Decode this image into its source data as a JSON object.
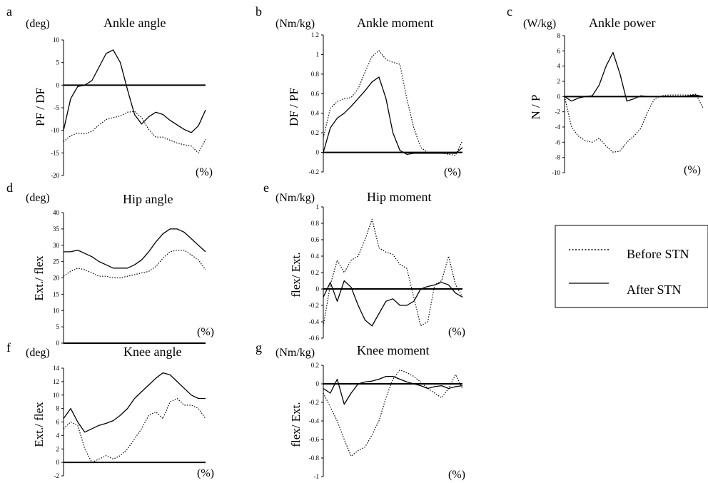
{
  "legend": {
    "items": [
      {
        "label": "Before STN",
        "style": "dotted"
      },
      {
        "label": "After STN",
        "style": "solid"
      }
    ]
  },
  "chart_data": [
    {
      "type": "line",
      "panel": "a",
      "title": "Ankle angle",
      "unit": "(deg)",
      "ylabel": "PF / DF",
      "xlabel": "(%)",
      "ylim": [
        -20,
        10
      ],
      "yticks": [
        "10",
        "5",
        "0",
        "-5",
        "-10",
        "-15",
        "-20"
      ],
      "series": [
        {
          "name": "Before STN",
          "style": "dotted",
          "x": [
            0,
            5,
            10,
            15,
            20,
            25,
            30,
            35,
            40,
            45,
            50,
            55,
            60,
            65,
            70,
            75,
            80,
            85,
            90,
            95,
            100
          ],
          "y": [
            -12.5,
            -11.2,
            -10.6,
            -10.8,
            -10.2,
            -8.8,
            -7.6,
            -7.2,
            -6.8,
            -6.0,
            -5.8,
            -7.2,
            -9.8,
            -11.5,
            -11.5,
            -12.2,
            -12.8,
            -13.2,
            -13.5,
            -15.0,
            -12.0
          ]
        },
        {
          "name": "After STN",
          "style": "solid",
          "x": [
            0,
            5,
            10,
            15,
            20,
            25,
            30,
            35,
            40,
            45,
            50,
            55,
            60,
            65,
            70,
            75,
            80,
            85,
            90,
            95,
            100
          ],
          "y": [
            -10.0,
            -3.0,
            -0.3,
            0.0,
            1.0,
            4.0,
            7.0,
            7.8,
            5.0,
            -1.0,
            -6.5,
            -8.6,
            -7.0,
            -6.0,
            -6.5,
            -7.8,
            -8.8,
            -9.8,
            -10.5,
            -9.0,
            -5.5
          ]
        }
      ]
    },
    {
      "type": "line",
      "panel": "b",
      "title": "Ankle moment",
      "unit": "(Nm/kg)",
      "ylabel": "DF / PF",
      "xlabel": "(%)",
      "ylim": [
        -0.2,
        1.2
      ],
      "yticks": [
        "1.2",
        "1",
        "0.8",
        "0.6",
        "0.4",
        "0.2",
        "0",
        "-0.2"
      ],
      "series": [
        {
          "name": "Before STN",
          "style": "dotted",
          "x": [
            0,
            5,
            10,
            15,
            20,
            25,
            30,
            35,
            40,
            45,
            50,
            55,
            60,
            65,
            70,
            75,
            80,
            85,
            90,
            95,
            100
          ],
          "y": [
            0.15,
            0.45,
            0.52,
            0.55,
            0.56,
            0.65,
            0.82,
            0.98,
            1.04,
            0.95,
            0.92,
            0.9,
            0.55,
            0.25,
            0.05,
            0.0,
            0.0,
            -0.01,
            -0.02,
            -0.03,
            0.12
          ]
        },
        {
          "name": "After STN",
          "style": "solid",
          "x": [
            0,
            5,
            10,
            15,
            20,
            25,
            30,
            35,
            40,
            45,
            50,
            55,
            60,
            65,
            70,
            75,
            80,
            85,
            90,
            95,
            100
          ],
          "y": [
            0.0,
            0.25,
            0.35,
            0.4,
            0.47,
            0.55,
            0.63,
            0.72,
            0.77,
            0.55,
            0.2,
            0.02,
            -0.02,
            -0.01,
            -0.01,
            -0.01,
            -0.01,
            -0.01,
            -0.01,
            -0.01,
            0.05
          ]
        }
      ]
    },
    {
      "type": "line",
      "panel": "c",
      "title": "Ankle power",
      "unit": "(W/kg)",
      "ylabel": "N / P",
      "xlabel": "(%)",
      "ylim": [
        -10,
        8
      ],
      "yticks": [
        "8",
        "6",
        "4",
        "2",
        "0",
        "-2",
        "-4",
        "-6",
        "-8",
        "-10"
      ],
      "series": [
        {
          "name": "Before STN",
          "style": "dotted",
          "x": [
            0,
            5,
            10,
            15,
            20,
            25,
            30,
            35,
            40,
            45,
            50,
            55,
            60,
            65,
            70,
            75,
            80,
            85,
            90,
            95,
            100
          ],
          "y": [
            0.0,
            -4.0,
            -5.2,
            -5.8,
            -6.0,
            -5.5,
            -6.5,
            -7.3,
            -7.2,
            -6.0,
            -5.2,
            -4.2,
            -2.0,
            -0.3,
            0.1,
            0.2,
            0.2,
            0.2,
            0.2,
            0.3,
            -1.5
          ]
        },
        {
          "name": "After STN",
          "style": "solid",
          "x": [
            0,
            5,
            10,
            15,
            20,
            25,
            30,
            35,
            40,
            45,
            50,
            55,
            60,
            65,
            70,
            75,
            80,
            85,
            90,
            95,
            100
          ],
          "y": [
            0.0,
            -0.6,
            -0.2,
            0.0,
            0.1,
            1.5,
            4.0,
            5.8,
            3.0,
            -0.6,
            -0.3,
            0.1,
            0.0,
            0.0,
            0.0,
            0.0,
            0.0,
            0.0,
            0.1,
            0.2,
            0.0
          ]
        }
      ]
    },
    {
      "type": "line",
      "panel": "d",
      "title": "Hip angle",
      "unit": "(deg)",
      "ylabel": "Ext./ flex",
      "xlabel": "(%)",
      "ylim": [
        0,
        40
      ],
      "yticks": [
        "40",
        "35",
        "30",
        "25",
        "20",
        "15",
        "10",
        "5",
        "0"
      ],
      "series": [
        {
          "name": "Before STN",
          "style": "dotted",
          "x": [
            0,
            5,
            10,
            15,
            20,
            25,
            30,
            35,
            40,
            45,
            50,
            55,
            60,
            65,
            70,
            75,
            80,
            85,
            90,
            95,
            100
          ],
          "y": [
            20.5,
            22.0,
            23.0,
            22.5,
            21.5,
            20.5,
            20.5,
            20.0,
            20.0,
            20.5,
            21.0,
            21.5,
            22.0,
            23.5,
            26.0,
            28.0,
            28.5,
            28.5,
            27.0,
            25.5,
            22.5
          ]
        },
        {
          "name": "After STN",
          "style": "solid",
          "x": [
            0,
            5,
            10,
            15,
            20,
            25,
            30,
            35,
            40,
            45,
            50,
            55,
            60,
            65,
            70,
            75,
            80,
            85,
            90,
            95,
            100
          ],
          "y": [
            28.0,
            28.0,
            28.5,
            27.5,
            26.5,
            25.0,
            24.0,
            23.0,
            23.0,
            23.0,
            24.0,
            25.5,
            28.0,
            31.0,
            33.5,
            35.0,
            35.0,
            34.0,
            32.0,
            30.0,
            28.0
          ]
        }
      ]
    },
    {
      "type": "line",
      "panel": "e",
      "title": "Hip moment",
      "unit": "(Nm/kg)",
      "ylabel": "flex/ Ext.",
      "xlabel": "(%)",
      "ylim": [
        -0.6,
        1
      ],
      "yticks": [
        "1",
        "0.8",
        "0.6",
        "0.4",
        "0.2",
        "0",
        "-0.2",
        "-0.4",
        "-0.6"
      ],
      "series": [
        {
          "name": "Before STN",
          "style": "dotted",
          "x": [
            0,
            5,
            10,
            15,
            20,
            25,
            30,
            35,
            40,
            45,
            50,
            55,
            60,
            65,
            70,
            75,
            80,
            85,
            90,
            95,
            100
          ],
          "y": [
            -0.45,
            0.05,
            0.35,
            0.2,
            0.35,
            0.4,
            0.6,
            0.85,
            0.5,
            0.45,
            0.42,
            0.3,
            0.25,
            -0.1,
            -0.45,
            -0.4,
            0.05,
            0.1,
            0.4,
            0.05,
            -0.1
          ]
        },
        {
          "name": "After STN",
          "style": "solid",
          "x": [
            0,
            5,
            10,
            15,
            20,
            25,
            30,
            35,
            40,
            45,
            50,
            55,
            60,
            65,
            70,
            75,
            80,
            85,
            90,
            95,
            100
          ],
          "y": [
            -0.1,
            0.08,
            -0.15,
            0.1,
            0.02,
            -0.2,
            -0.38,
            -0.45,
            -0.3,
            -0.15,
            -0.12,
            -0.2,
            -0.2,
            -0.15,
            0.0,
            0.03,
            0.05,
            0.08,
            0.05,
            -0.05,
            -0.1
          ]
        }
      ]
    },
    {
      "type": "line",
      "panel": "f",
      "title": "Knee angle",
      "unit": "(deg)",
      "ylabel": "Ext./ flex",
      "xlabel": "(%)",
      "ylim": [
        -2,
        14
      ],
      "yticks": [
        "14",
        "12",
        "10",
        "8",
        "6",
        "4",
        "2",
        "0",
        "-2"
      ],
      "series": [
        {
          "name": "Before STN",
          "style": "dotted",
          "x": [
            0,
            5,
            10,
            15,
            20,
            25,
            30,
            35,
            40,
            45,
            50,
            55,
            60,
            65,
            70,
            75,
            80,
            85,
            90,
            95,
            100
          ],
          "y": [
            5.0,
            6.0,
            5.5,
            2.0,
            0.0,
            0.5,
            1.0,
            0.5,
            1.0,
            2.0,
            3.5,
            5.0,
            7.0,
            7.5,
            6.5,
            9.0,
            9.5,
            8.5,
            8.5,
            8.0,
            6.5
          ]
        },
        {
          "name": "After STN",
          "style": "solid",
          "x": [
            0,
            5,
            10,
            15,
            20,
            25,
            30,
            35,
            40,
            45,
            50,
            55,
            60,
            65,
            70,
            75,
            80,
            85,
            90,
            95,
            100
          ],
          "y": [
            6.5,
            8.0,
            6.0,
            4.5,
            5.0,
            5.5,
            5.8,
            6.2,
            7.0,
            8.0,
            9.5,
            10.5,
            11.5,
            12.5,
            13.3,
            13.0,
            12.0,
            11.0,
            10.0,
            9.5,
            9.5
          ]
        }
      ]
    },
    {
      "type": "line",
      "panel": "g",
      "title": "Knee moment",
      "unit": "(Nm/kg)",
      "ylabel": "flex/ Ext.",
      "xlabel": "(%)",
      "ylim": [
        -1,
        0.2
      ],
      "yticks": [
        "0.2",
        "0",
        "-0.2",
        "-0.4",
        "-0.6",
        "-0.8",
        "-1"
      ],
      "series": [
        {
          "name": "Before STN",
          "style": "dotted",
          "x": [
            0,
            5,
            10,
            15,
            20,
            25,
            30,
            35,
            40,
            45,
            50,
            55,
            60,
            65,
            70,
            75,
            80,
            85,
            90,
            95,
            100
          ],
          "y": [
            -0.1,
            -0.25,
            -0.4,
            -0.6,
            -0.78,
            -0.72,
            -0.68,
            -0.55,
            -0.4,
            -0.15,
            0.05,
            0.15,
            0.12,
            0.08,
            0.02,
            -0.05,
            -0.1,
            -0.15,
            -0.05,
            0.1,
            -0.05
          ]
        },
        {
          "name": "After STN",
          "style": "solid",
          "x": [
            0,
            5,
            10,
            15,
            20,
            25,
            30,
            35,
            40,
            45,
            50,
            55,
            60,
            65,
            70,
            75,
            80,
            85,
            90,
            95,
            100
          ],
          "y": [
            -0.05,
            -0.1,
            0.05,
            -0.22,
            -0.1,
            0.0,
            0.02,
            0.03,
            0.05,
            0.08,
            0.08,
            0.05,
            0.02,
            0.0,
            -0.02,
            -0.05,
            -0.03,
            -0.02,
            -0.05,
            -0.03,
            -0.02
          ]
        }
      ]
    }
  ]
}
